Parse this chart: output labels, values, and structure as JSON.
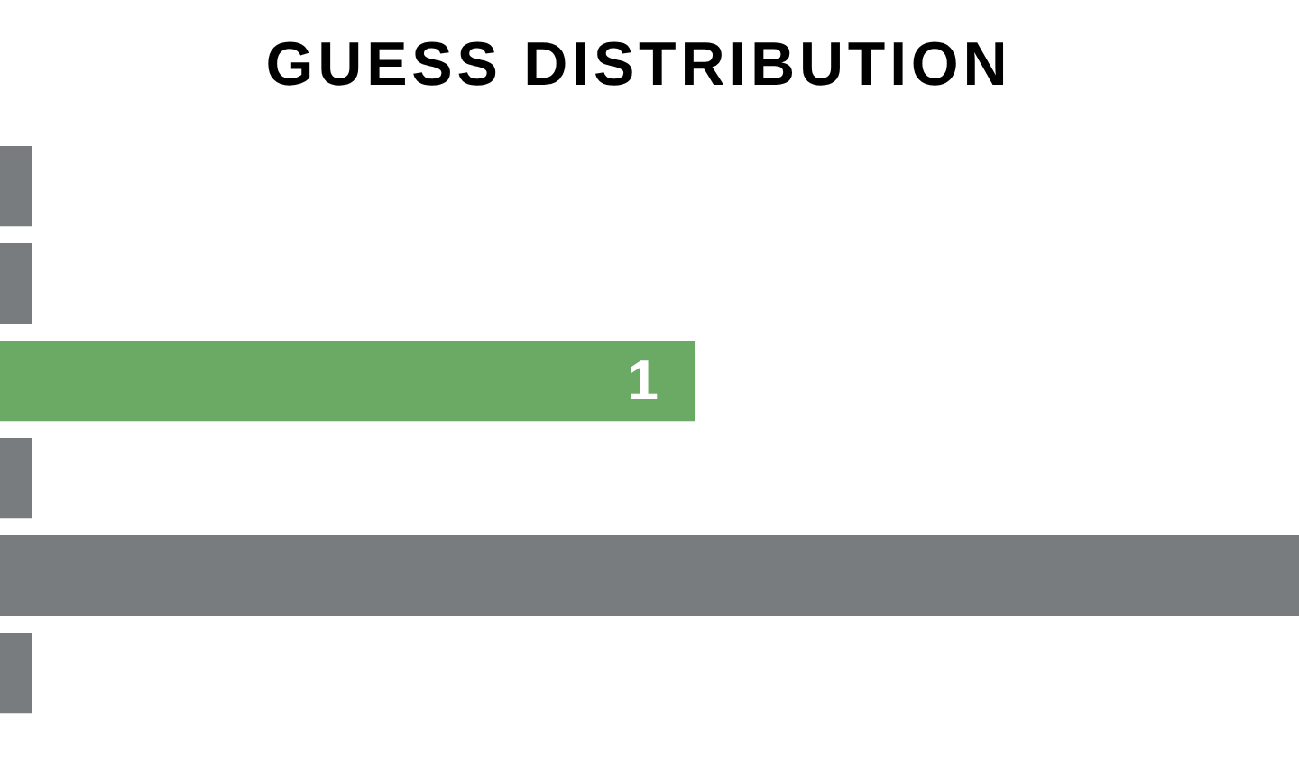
{
  "chart_data": {
    "type": "bar",
    "title": "GUESS DISTRIBUTION",
    "orientation": "horizontal",
    "tick_labels": false,
    "categories": [
      null,
      null,
      null,
      null,
      null,
      null
    ],
    "values": [
      0.046,
      0.046,
      1,
      0.046,
      1.87,
      0.046
    ],
    "xlim": [
      0,
      1.87
    ],
    "colors": [
      "#787c7e",
      "#787c7e",
      "#6aaa64",
      "#787c7e",
      "#787c7e",
      "#787c7e"
    ],
    "value_labels": [
      null,
      null,
      "1",
      null,
      null,
      null
    ]
  }
}
